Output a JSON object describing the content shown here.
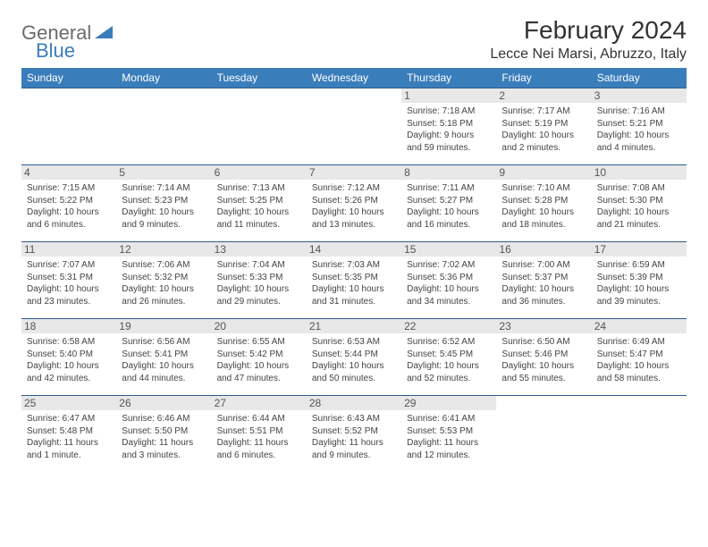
{
  "logo": {
    "text1": "General",
    "text2": "Blue"
  },
  "title": "February 2024",
  "location": "Lecce Nei Marsi, Abruzzo, Italy",
  "colors": {
    "header_bg": "#3a7dbb",
    "header_text": "#ffffff",
    "daynum_bg": "#e8e8e8",
    "border": "#2b5c8a",
    "logo_gray": "#6b6b6b",
    "logo_blue": "#3a7dbb"
  },
  "weekdays": [
    "Sunday",
    "Monday",
    "Tuesday",
    "Wednesday",
    "Thursday",
    "Friday",
    "Saturday"
  ],
  "weeks": [
    [
      {
        "n": "",
        "sr": "",
        "ss": "",
        "dl": ""
      },
      {
        "n": "",
        "sr": "",
        "ss": "",
        "dl": ""
      },
      {
        "n": "",
        "sr": "",
        "ss": "",
        "dl": ""
      },
      {
        "n": "",
        "sr": "",
        "ss": "",
        "dl": ""
      },
      {
        "n": "1",
        "sr": "Sunrise: 7:18 AM",
        "ss": "Sunset: 5:18 PM",
        "dl": "Daylight: 9 hours and 59 minutes."
      },
      {
        "n": "2",
        "sr": "Sunrise: 7:17 AM",
        "ss": "Sunset: 5:19 PM",
        "dl": "Daylight: 10 hours and 2 minutes."
      },
      {
        "n": "3",
        "sr": "Sunrise: 7:16 AM",
        "ss": "Sunset: 5:21 PM",
        "dl": "Daylight: 10 hours and 4 minutes."
      }
    ],
    [
      {
        "n": "4",
        "sr": "Sunrise: 7:15 AM",
        "ss": "Sunset: 5:22 PM",
        "dl": "Daylight: 10 hours and 6 minutes."
      },
      {
        "n": "5",
        "sr": "Sunrise: 7:14 AM",
        "ss": "Sunset: 5:23 PM",
        "dl": "Daylight: 10 hours and 9 minutes."
      },
      {
        "n": "6",
        "sr": "Sunrise: 7:13 AM",
        "ss": "Sunset: 5:25 PM",
        "dl": "Daylight: 10 hours and 11 minutes."
      },
      {
        "n": "7",
        "sr": "Sunrise: 7:12 AM",
        "ss": "Sunset: 5:26 PM",
        "dl": "Daylight: 10 hours and 13 minutes."
      },
      {
        "n": "8",
        "sr": "Sunrise: 7:11 AM",
        "ss": "Sunset: 5:27 PM",
        "dl": "Daylight: 10 hours and 16 minutes."
      },
      {
        "n": "9",
        "sr": "Sunrise: 7:10 AM",
        "ss": "Sunset: 5:28 PM",
        "dl": "Daylight: 10 hours and 18 minutes."
      },
      {
        "n": "10",
        "sr": "Sunrise: 7:08 AM",
        "ss": "Sunset: 5:30 PM",
        "dl": "Daylight: 10 hours and 21 minutes."
      }
    ],
    [
      {
        "n": "11",
        "sr": "Sunrise: 7:07 AM",
        "ss": "Sunset: 5:31 PM",
        "dl": "Daylight: 10 hours and 23 minutes."
      },
      {
        "n": "12",
        "sr": "Sunrise: 7:06 AM",
        "ss": "Sunset: 5:32 PM",
        "dl": "Daylight: 10 hours and 26 minutes."
      },
      {
        "n": "13",
        "sr": "Sunrise: 7:04 AM",
        "ss": "Sunset: 5:33 PM",
        "dl": "Daylight: 10 hours and 29 minutes."
      },
      {
        "n": "14",
        "sr": "Sunrise: 7:03 AM",
        "ss": "Sunset: 5:35 PM",
        "dl": "Daylight: 10 hours and 31 minutes."
      },
      {
        "n": "15",
        "sr": "Sunrise: 7:02 AM",
        "ss": "Sunset: 5:36 PM",
        "dl": "Daylight: 10 hours and 34 minutes."
      },
      {
        "n": "16",
        "sr": "Sunrise: 7:00 AM",
        "ss": "Sunset: 5:37 PM",
        "dl": "Daylight: 10 hours and 36 minutes."
      },
      {
        "n": "17",
        "sr": "Sunrise: 6:59 AM",
        "ss": "Sunset: 5:39 PM",
        "dl": "Daylight: 10 hours and 39 minutes."
      }
    ],
    [
      {
        "n": "18",
        "sr": "Sunrise: 6:58 AM",
        "ss": "Sunset: 5:40 PM",
        "dl": "Daylight: 10 hours and 42 minutes."
      },
      {
        "n": "19",
        "sr": "Sunrise: 6:56 AM",
        "ss": "Sunset: 5:41 PM",
        "dl": "Daylight: 10 hours and 44 minutes."
      },
      {
        "n": "20",
        "sr": "Sunrise: 6:55 AM",
        "ss": "Sunset: 5:42 PM",
        "dl": "Daylight: 10 hours and 47 minutes."
      },
      {
        "n": "21",
        "sr": "Sunrise: 6:53 AM",
        "ss": "Sunset: 5:44 PM",
        "dl": "Daylight: 10 hours and 50 minutes."
      },
      {
        "n": "22",
        "sr": "Sunrise: 6:52 AM",
        "ss": "Sunset: 5:45 PM",
        "dl": "Daylight: 10 hours and 52 minutes."
      },
      {
        "n": "23",
        "sr": "Sunrise: 6:50 AM",
        "ss": "Sunset: 5:46 PM",
        "dl": "Daylight: 10 hours and 55 minutes."
      },
      {
        "n": "24",
        "sr": "Sunrise: 6:49 AM",
        "ss": "Sunset: 5:47 PM",
        "dl": "Daylight: 10 hours and 58 minutes."
      }
    ],
    [
      {
        "n": "25",
        "sr": "Sunrise: 6:47 AM",
        "ss": "Sunset: 5:48 PM",
        "dl": "Daylight: 11 hours and 1 minute."
      },
      {
        "n": "26",
        "sr": "Sunrise: 6:46 AM",
        "ss": "Sunset: 5:50 PM",
        "dl": "Daylight: 11 hours and 3 minutes."
      },
      {
        "n": "27",
        "sr": "Sunrise: 6:44 AM",
        "ss": "Sunset: 5:51 PM",
        "dl": "Daylight: 11 hours and 6 minutes."
      },
      {
        "n": "28",
        "sr": "Sunrise: 6:43 AM",
        "ss": "Sunset: 5:52 PM",
        "dl": "Daylight: 11 hours and 9 minutes."
      },
      {
        "n": "29",
        "sr": "Sunrise: 6:41 AM",
        "ss": "Sunset: 5:53 PM",
        "dl": "Daylight: 11 hours and 12 minutes."
      },
      {
        "n": "",
        "sr": "",
        "ss": "",
        "dl": ""
      },
      {
        "n": "",
        "sr": "",
        "ss": "",
        "dl": ""
      }
    ]
  ]
}
